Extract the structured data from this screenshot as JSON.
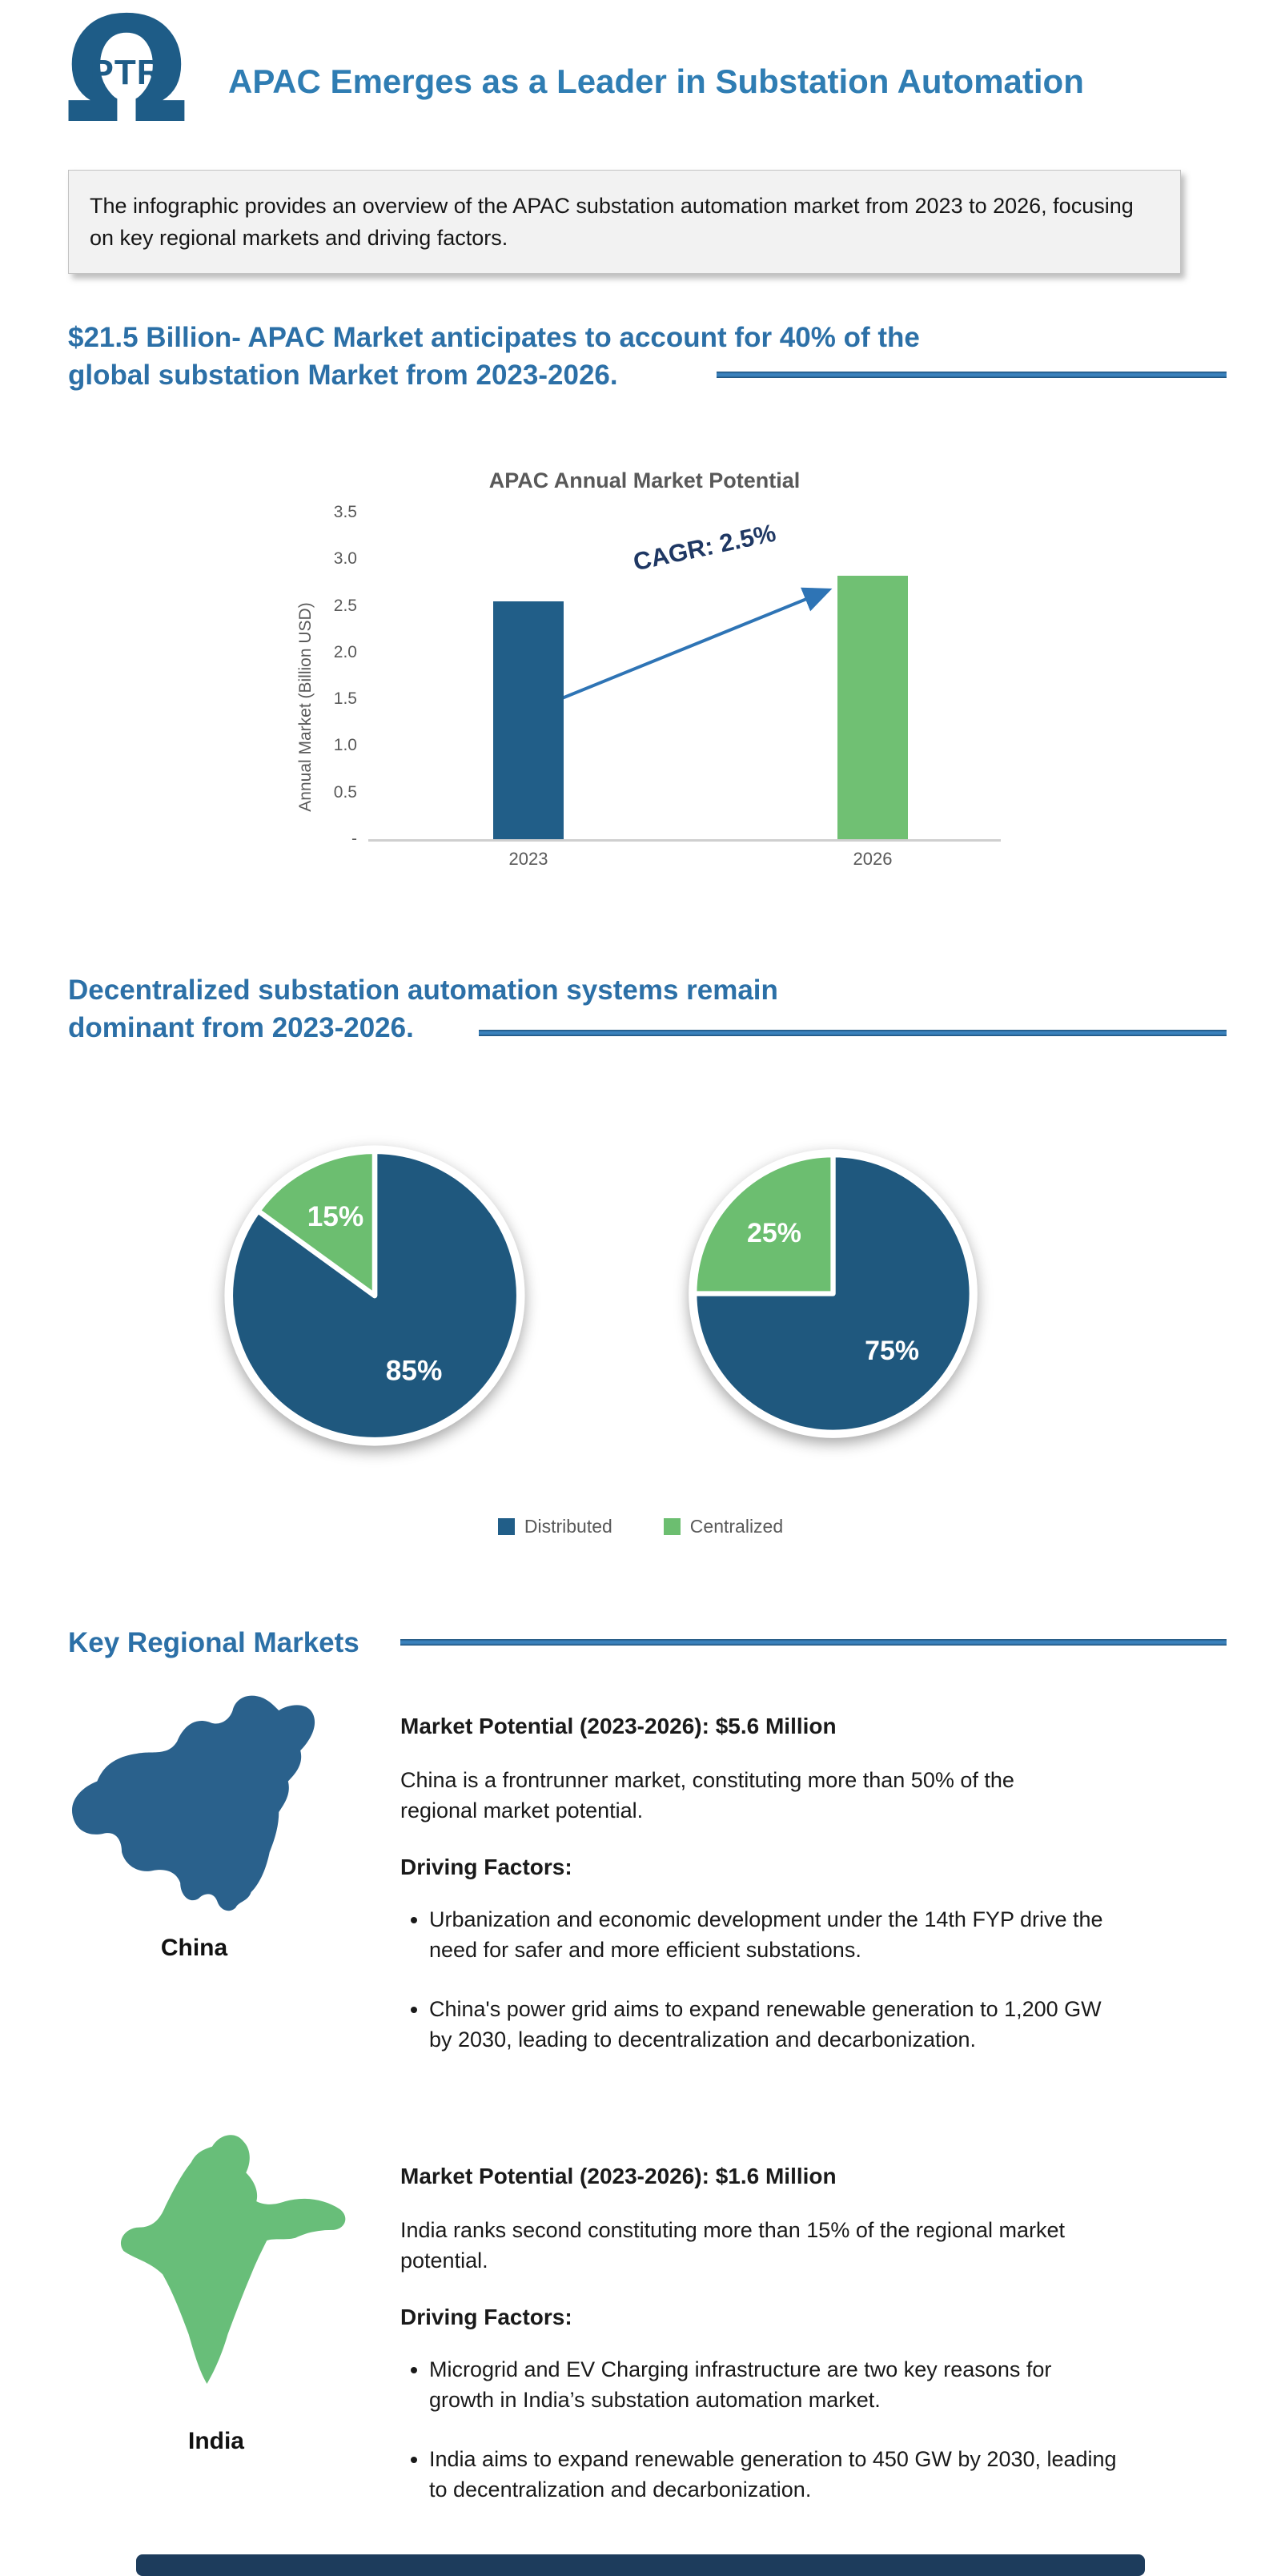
{
  "header": {
    "logo_text": "PTR",
    "title": "APAC Emerges as a Leader in Substation Automation"
  },
  "intro": {
    "text": "The infographic provides an overview of the APAC substation automation market from 2023 to 2026, focusing on key regional markets and driving factors."
  },
  "sections": {
    "market": {
      "heading_line1": "$21.5 Billion- APAC Market anticipates to account for 40% of the",
      "heading_line2": "global substation Market from 2023-2026."
    },
    "decentralized": {
      "heading_line1": "Decentralized substation automation systems remain",
      "heading_line2": "dominant from 2023-2026."
    },
    "regional": {
      "heading": "Key Regional Markets"
    }
  },
  "chart_data": [
    {
      "type": "bar",
      "title": "APAC Annual Market Potential",
      "xlabel": "",
      "ylabel": "Annual Market (Billion USD)",
      "categories": [
        "2023",
        "2026"
      ],
      "values": [
        2.55,
        2.82
      ],
      "bar_colors": [
        "#215E88",
        "#70C073"
      ],
      "ylim": [
        0,
        3.5
      ],
      "yticks": [
        "3.5",
        "3.0",
        "2.5",
        "2.0",
        "1.5",
        "1.0",
        "0.5",
        "-"
      ],
      "grid": false,
      "legend_position": "none",
      "annotation": "CAGR: 2.5%"
    },
    {
      "type": "pie",
      "name": "pie-2023",
      "slices": [
        "Distributed",
        "Centralized"
      ],
      "values": [
        85,
        15
      ],
      "labels": [
        "85%",
        "15%"
      ],
      "colors": [
        "#1F587E",
        "#6CBE70"
      ]
    },
    {
      "type": "pie",
      "name": "pie-2026",
      "slices": [
        "Distributed",
        "Centralized"
      ],
      "values": [
        75,
        25
      ],
      "labels": [
        "75%",
        "25%"
      ],
      "colors": [
        "#1F587E",
        "#6CBE70"
      ]
    }
  ],
  "pie_legend": {
    "items": [
      {
        "label": "Distributed",
        "color": "#215E88"
      },
      {
        "label": "Centralized",
        "color": "#6CBE70"
      }
    ]
  },
  "china": {
    "name": "China",
    "market_potential": "Market Potential (2023-2026): $5.6 Million",
    "description": "China is a frontrunner market, constituting more than 50% of the regional market potential.",
    "driving_factors_label": "Driving Factors:",
    "bullets": [
      "Urbanization and economic development under the 14th FYP drive the need for safer and more efficient substations.",
      "China's power grid aims to expand renewable generation to 1,200 GW by 2030, leading to decentralization and decarbonization."
    ]
  },
  "india": {
    "name": "India",
    "market_potential": "Market Potential (2023-2026): $1.6 Million",
    "description": "India ranks second constituting more than 15% of the regional market potential.",
    "driving_factors_label": "Driving Factors:",
    "bullets": [
      "Microgrid and EV Charging infrastructure are two key reasons for growth in India’s substation automation market.",
      "India aims to expand renewable generation to 450 GW by 2030, leading to decentralization and decarbonization."
    ]
  },
  "colors": {
    "title_blue": "#2F7DB3",
    "heading_blue": "#2C70A7",
    "rule_blue": "#2A6CA4",
    "bar_2023": "#215E88",
    "bar_2026": "#70C073",
    "pie_distributed": "#1F587E",
    "pie_centralized": "#6CBE70",
    "arrow_blue": "#2E74B5",
    "cagr_navy": "#1F3864",
    "axis_gray": "#595959",
    "china_map": "#2A618C",
    "india_map": "#68BE79",
    "footer_navy": "#1D3C5C"
  }
}
